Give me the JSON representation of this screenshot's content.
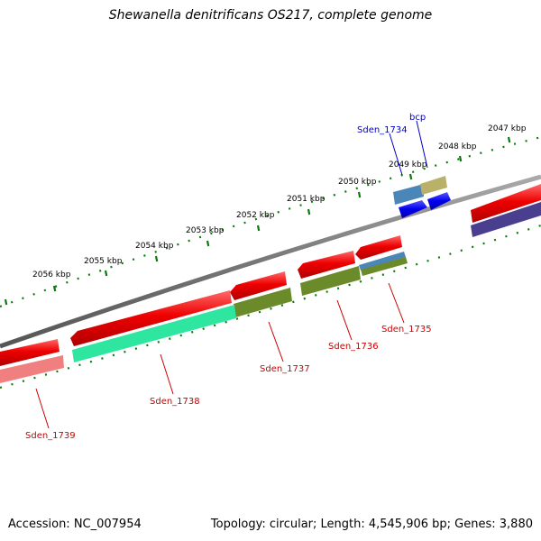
{
  "title": "Shewanella denitrificans OS217, complete genome",
  "footer": {
    "accession": "Accession: NC_007954",
    "stats": "Topology: circular; Length: 4,545,906 bp; Genes: 3,880"
  },
  "ticks": [
    {
      "label": "2047 kbp"
    },
    {
      "label": "2048 kbp"
    },
    {
      "label": "2049 kbp"
    },
    {
      "label": "2050 kbp"
    },
    {
      "label": "2051 kbp"
    },
    {
      "label": "2052 kbp"
    },
    {
      "label": "2053 kbp"
    },
    {
      "label": "2054 kbp"
    },
    {
      "label": "2055 kbp"
    },
    {
      "label": "2056 kbp"
    }
  ],
  "genes": [
    {
      "name": "bcp",
      "strand": "forward",
      "color": "#0000cc"
    },
    {
      "name": "Sden_1734",
      "strand": "forward",
      "color": "#0000cc"
    },
    {
      "name": "Sden_1735",
      "strand": "reverse",
      "color": "#cc0000"
    },
    {
      "name": "Sden_1736",
      "strand": "reverse",
      "color": "#cc0000"
    },
    {
      "name": "Sden_1737",
      "strand": "reverse",
      "color": "#cc0000"
    },
    {
      "name": "Sden_1738",
      "strand": "reverse",
      "color": "#cc0000"
    },
    {
      "name": "Sden_1739",
      "strand": "reverse",
      "color": "#cc0000"
    }
  ],
  "colors": {
    "backbone": "#7a7a7a",
    "tick": "#0b7a0b",
    "cds": "#ee0000",
    "forward_cds": "#0000ee"
  }
}
